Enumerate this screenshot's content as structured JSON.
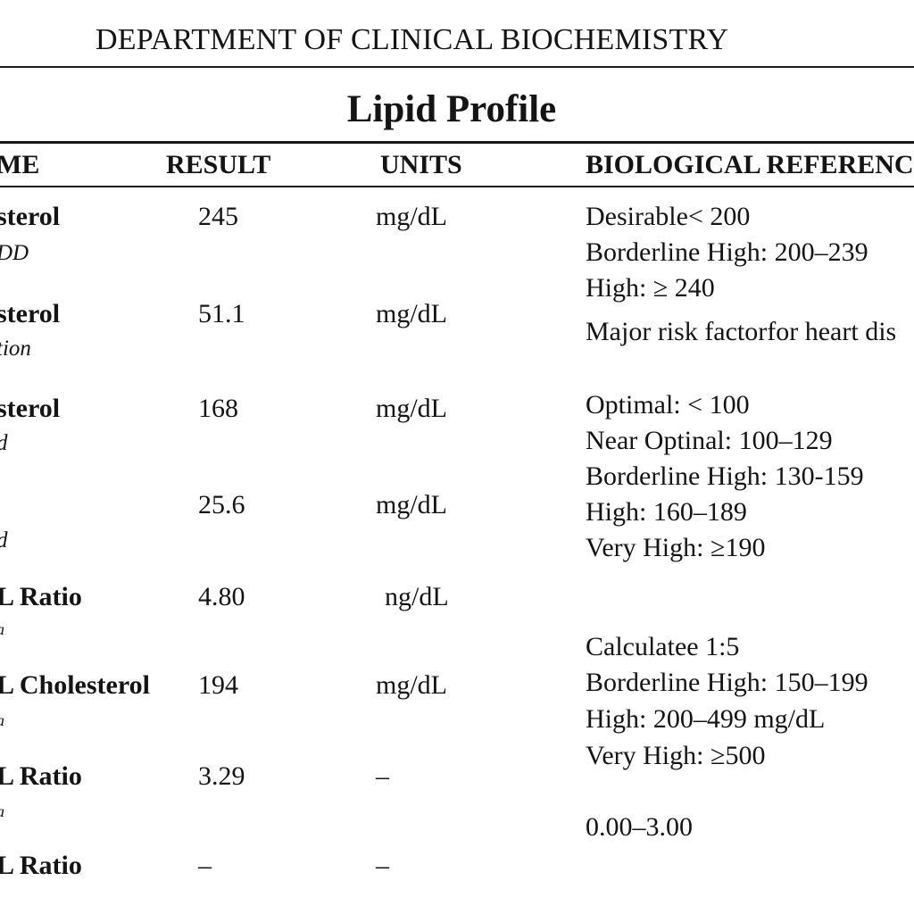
{
  "document": {
    "department": "DEPARTMENT OF CLINICAL BIOCHEMISTRY",
    "title": "Lipid Profile"
  },
  "headers": {
    "name": "ME",
    "result": "RESULT",
    "units": "UNITS",
    "reference": "BIOLOGICAL REFERENC"
  },
  "rows": [
    {
      "name": "sterol",
      "method": "DD",
      "result": "245",
      "unit": "mg/dL"
    },
    {
      "name": "sterol",
      "method": "tion",
      "result": "51.1",
      "unit": "mg/dL"
    },
    {
      "name": "sterol",
      "method": "d",
      "result": "168",
      "unit": "mg/dL"
    },
    {
      "name": "",
      "method": "d",
      "result": "25.6",
      "unit": "mg/dL"
    },
    {
      "name": "L Ratio",
      "method": "a",
      "result": "4.80",
      "unit": "ng/dL"
    },
    {
      "name": "L Cholesterol",
      "method": "a",
      "result": "194",
      "unit": "mg/dL"
    },
    {
      "name": "L Ratio",
      "method": "a",
      "result": "3.29",
      "unit": "–"
    },
    {
      "name": "L Ratio",
      "method": "",
      "result": "–",
      "unit": "–"
    }
  ],
  "reference": [
    "Desirable< 200",
    "Borderline High: 200–239",
    "High: ≥ 240",
    "Major risk factorfor heart dis",
    "Optimal: < 100",
    "Near Optinal: 100–129",
    "Borderline High: 130-159",
    "High: 160–189",
    "Very High: ≥190",
    "Calculatee 1:5",
    "Borderline High: 150–199",
    "High: 200–499 mg/dL",
    "Very High: ≥500",
    "0.00–3.00"
  ]
}
